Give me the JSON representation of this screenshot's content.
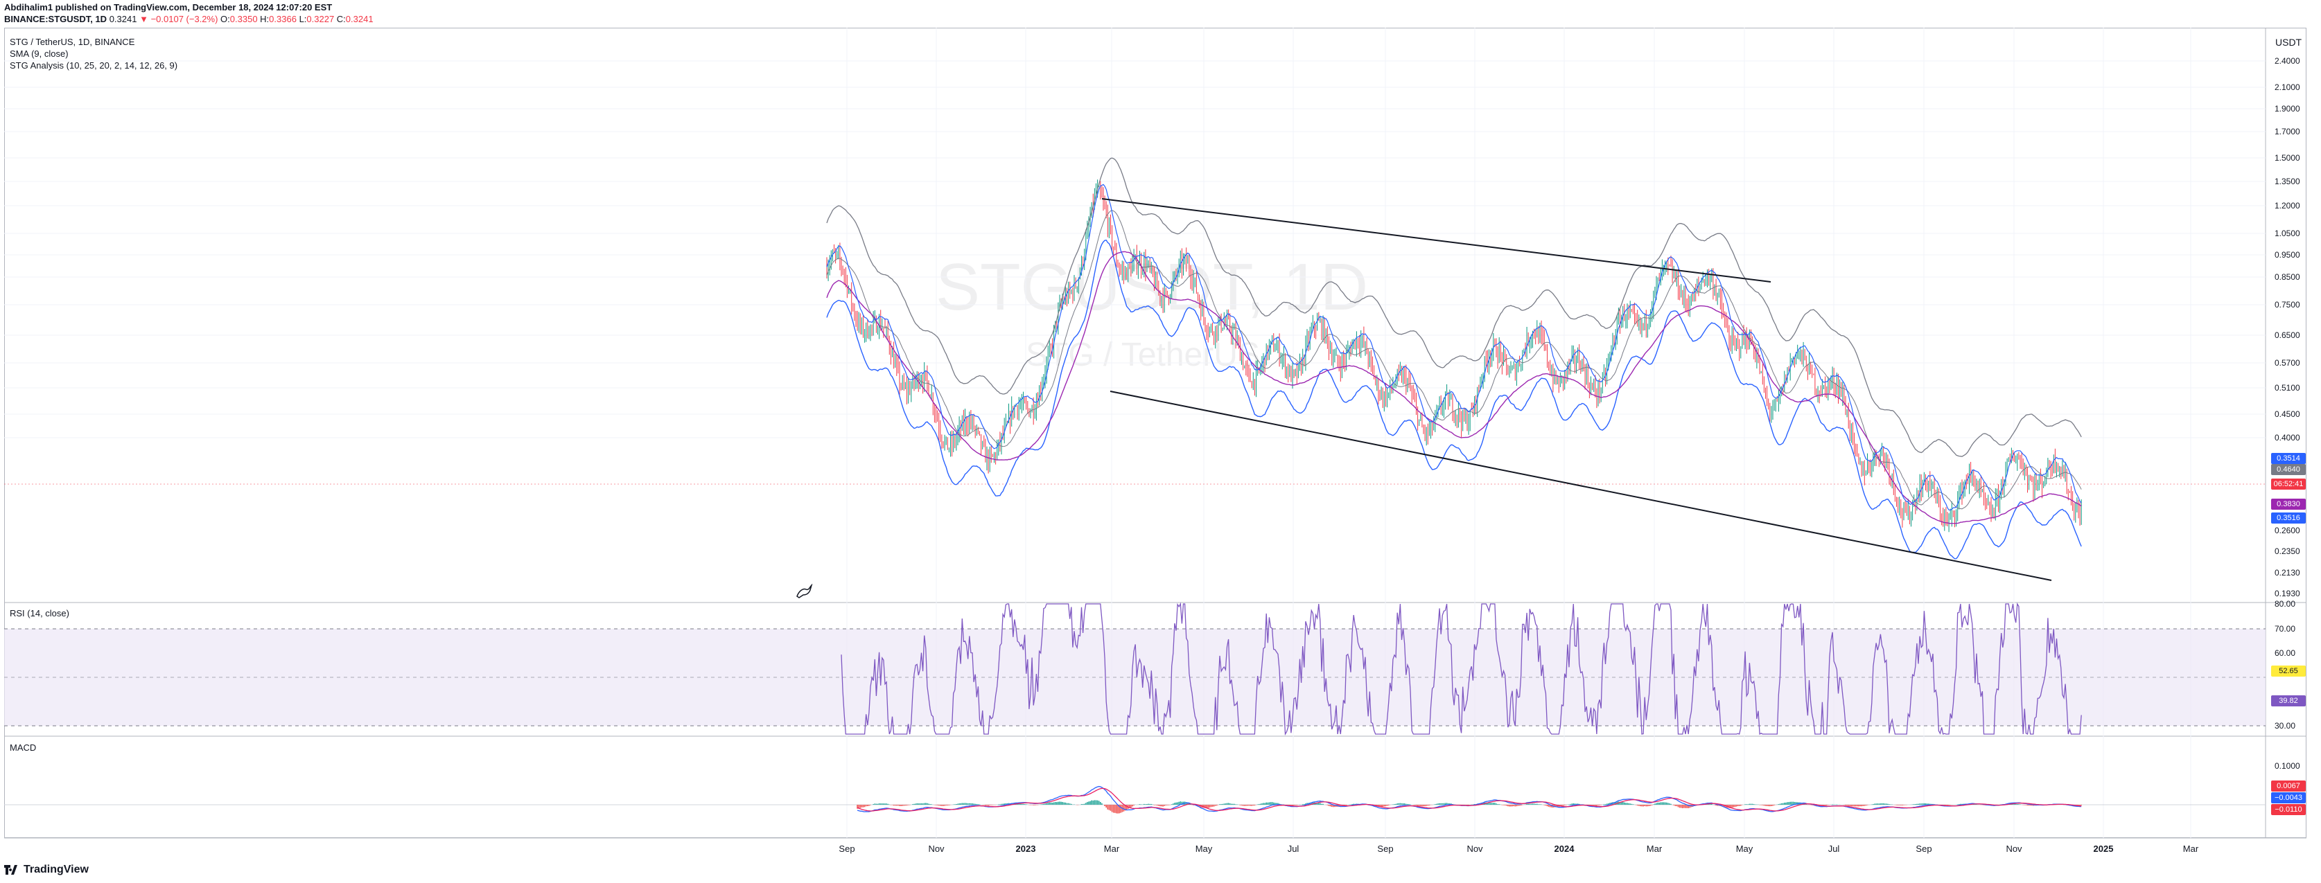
{
  "header": {
    "publisher_line": "Abdihalim1 published on TradingView.com, December 18, 2024 12:07:20 EST",
    "symbol": "BINANCE:STGUSDT, 1D",
    "last": "0.3241",
    "change": "▼ −0.0107 (−3.2%)",
    "o_label": "O:",
    "o": "0.3350",
    "h_label": "H:",
    "h": "0.3366",
    "l_label": "L:",
    "l": "0.3227",
    "c_label": "C:",
    "c": "0.3241"
  },
  "legend": {
    "line1": "STG / TetherUS, 1D, BINANCE",
    "line2": "SMA (9, close)",
    "line3": "STG Analysis (10, 25, 20, 2, 14, 12, 26, 9)"
  },
  "watermark": {
    "big": "STGUSDT, 1D",
    "small": "STG / TetherUS"
  },
  "panes": {
    "rsi": "RSI (14, close)",
    "macd": "MACD"
  },
  "currency": "USDT",
  "price_axis": [
    "2.4000",
    "2.1000",
    "1.9000",
    "1.7000",
    "1.5000",
    "1.3500",
    "1.2000",
    "1.0500",
    "0.9500",
    "0.8500",
    "0.7500",
    "0.6500",
    "0.5700",
    "0.5100",
    "0.4500",
    "0.4000",
    "0.3514",
    "0.4640",
    "06:52:41",
    "0.3830",
    "0.3516",
    "0.2600",
    "0.2350",
    "0.2130",
    "0.1930"
  ],
  "rsi_axis": [
    "80.00",
    "70.00",
    "60.00",
    "52.65",
    "39.82",
    "30.00"
  ],
  "macd_axis": [
    "0.1000",
    "0.0067",
    "−0.0043",
    "−0.0110"
  ],
  "time_axis": [
    "Sep",
    "Nov",
    "2023",
    "Mar",
    "May",
    "Jul",
    "Sep",
    "Nov",
    "2024",
    "Mar",
    "May",
    "Jul",
    "Sep",
    "Nov",
    "2025",
    "Mar"
  ],
  "badges": {
    "b1": "0.3514",
    "b2": "0.4640",
    "b3": "06:52:41",
    "b4": "0.3830",
    "b5": "0.3516",
    "r1": "52.65",
    "r2": "39.82",
    "m1": "0.0067",
    "m2": "−0.0043",
    "m3": "−0.0110"
  },
  "footer": {
    "brand": "TradingView"
  },
  "colors": {
    "up": "#089981",
    "down": "#f23645",
    "blue": "#2962ff",
    "purple": "#9c27b0",
    "rsi_line": "#7e57c2",
    "rsi_band": "#ede7f6"
  },
  "chart_data": {
    "type": "line",
    "series": [
      {
        "name": "STG / TetherUS, 1D, BINANCE",
        "x": [
          "2022-08",
          "2022-09",
          "2022-10",
          "2022-11",
          "2022-12",
          "2023-01",
          "2023-02",
          "2023-03",
          "2023-04",
          "2023-05",
          "2023-06",
          "2023-07",
          "2023-08",
          "2023-09",
          "2023-10",
          "2023-11",
          "2023-12",
          "2024-01",
          "2024-02",
          "2024-03",
          "2024-04",
          "2024-05",
          "2024-06",
          "2024-07",
          "2024-08",
          "2024-09",
          "2024-10",
          "2024-11",
          "2024-12"
        ],
        "values": [
          0.9,
          0.62,
          0.52,
          0.42,
          0.38,
          0.55,
          1.25,
          0.85,
          0.8,
          0.62,
          0.6,
          0.62,
          0.55,
          0.5,
          0.45,
          0.55,
          0.6,
          0.55,
          0.7,
          0.8,
          0.78,
          0.52,
          0.55,
          0.38,
          0.33,
          0.3,
          0.29,
          0.36,
          0.33
        ]
      }
    ],
    "y_scale": "log",
    "ylim": [
      0.19,
      2.4
    ],
    "rsi_bands": [
      30,
      70
    ],
    "rsi_last": 39.82,
    "rsi_ma_last": 52.65
  }
}
